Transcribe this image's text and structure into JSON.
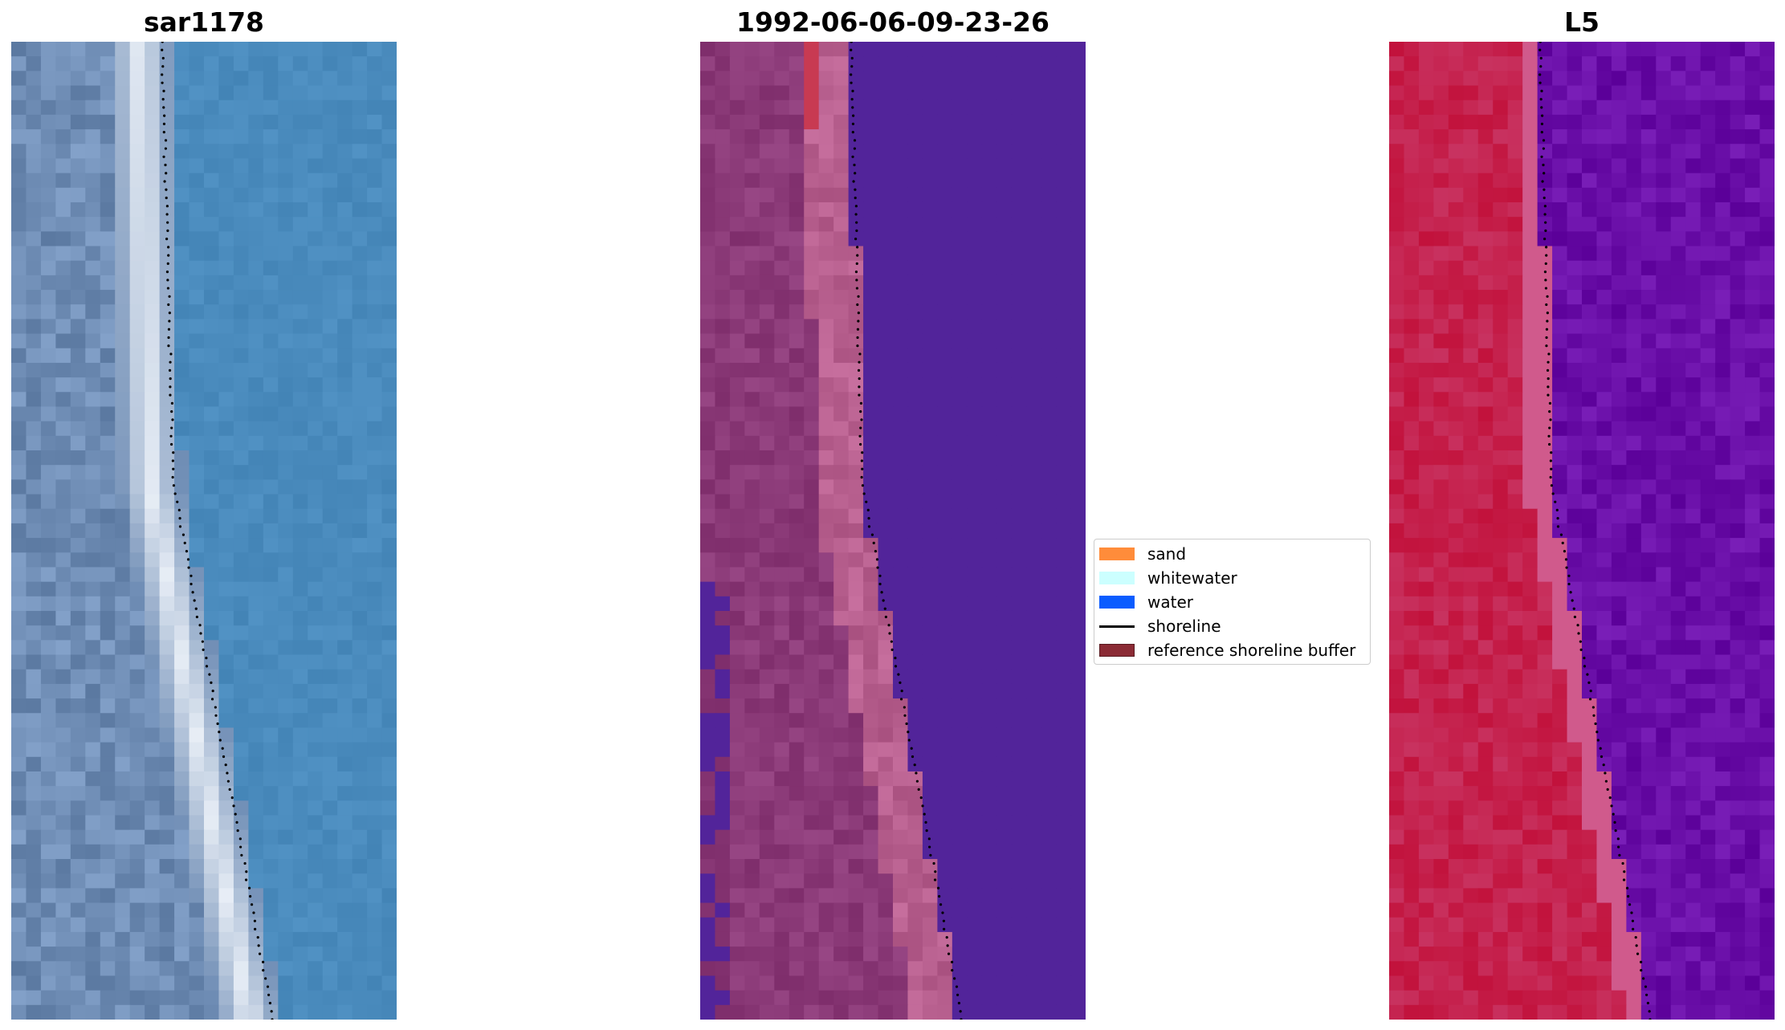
{
  "panels": [
    {
      "title": "sar1178",
      "kind": "rgb"
    },
    {
      "title": "1992-06-06-09-23-26",
      "kind": "classified"
    },
    {
      "title": "L5",
      "kind": "index"
    }
  ],
  "legend": {
    "items": [
      {
        "label": "sand",
        "color": "#ff8c3a",
        "type": "patch"
      },
      {
        "label": "whitewater",
        "color": "#ccffff",
        "type": "patch"
      },
      {
        "label": "water",
        "color": "#0a5cff",
        "type": "patch"
      },
      {
        "label": "shoreline",
        "color": "#000000",
        "type": "line"
      },
      {
        "label": "reference shoreline buffer",
        "color": "#8b2b35",
        "type": "patch"
      }
    ]
  },
  "colors": {
    "rgb_land": "#6f8db5",
    "rgb_beach": "#e8eef6",
    "rgb_sea": "#4a8bbd",
    "class_buffer": "#8b3a78",
    "class_buffer_light": "#b8608f",
    "class_water": "#52249a",
    "class_sand": "#c83a52",
    "index_high": "#c2123c",
    "index_mid": "#d05a8c",
    "index_low": "#6a0fa8",
    "shoreline_dots": "#000000"
  }
}
